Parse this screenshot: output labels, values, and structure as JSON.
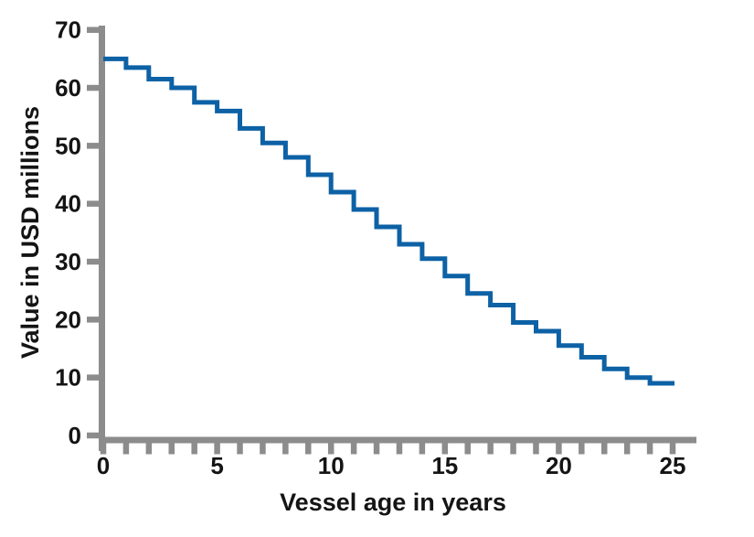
{
  "chart_data": {
    "type": "line",
    "line_style": "step-post",
    "title": "",
    "xlabel": "Vessel age in years",
    "ylabel": "Value in USD millions",
    "x_step_starts": [
      0,
      1,
      2,
      3,
      4,
      5,
      6,
      7,
      8,
      9,
      10,
      11,
      12,
      13,
      14,
      15,
      16,
      17,
      18,
      19,
      20,
      21,
      22,
      23,
      24
    ],
    "values": [
      65,
      63.5,
      61.5,
      60,
      57.5,
      56,
      53,
      50.5,
      48,
      45,
      42,
      39,
      36,
      33,
      30.5,
      27.5,
      24.5,
      22.5,
      19.5,
      18,
      15.5,
      13.5,
      11.5,
      10,
      9
    ],
    "x_end": 25,
    "xlim": [
      0,
      25
    ],
    "ylim": [
      0,
      70
    ],
    "ytick_labels": [
      0,
      10,
      20,
      30,
      40,
      50,
      60,
      70
    ],
    "xtick_labels": [
      0,
      5,
      10,
      15,
      20,
      25
    ],
    "xticks_minor_every_years": 1,
    "grid": "off",
    "legend": "none",
    "colors": {
      "line": "#0d61a5",
      "axis": "#8c8c8c",
      "text": "#141414",
      "background": "#ffffff"
    }
  }
}
